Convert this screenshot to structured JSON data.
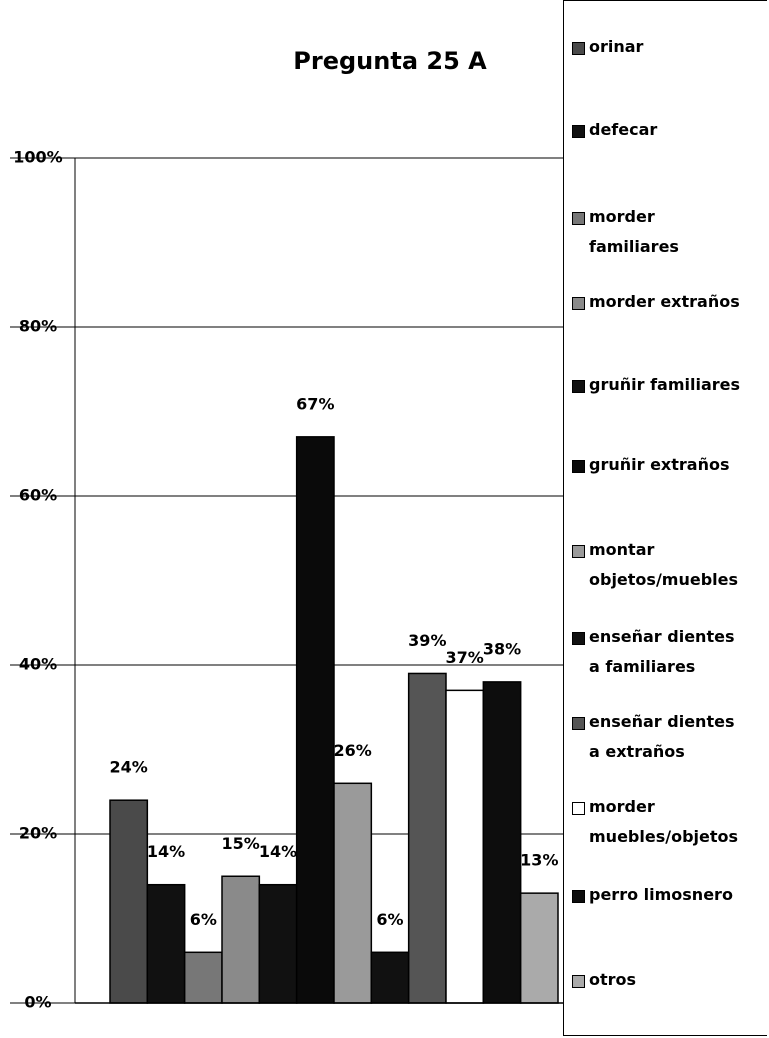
{
  "chart_data": {
    "type": "bar",
    "title": "Pregunta 25 A",
    "categories": [
      null
    ],
    "ylim": [
      0,
      100
    ],
    "yticks": [
      {
        "value": 0,
        "label": "0%"
      },
      {
        "value": 20,
        "label": "20%"
      },
      {
        "value": 40,
        "label": "40%"
      },
      {
        "value": 60,
        "label": "60%"
      },
      {
        "value": 80,
        "label": "80%"
      },
      {
        "value": 100,
        "label": "100%"
      }
    ],
    "grid": true,
    "legend": "right",
    "series": [
      {
        "name": "orinar",
        "color": "#4a4a4a",
        "values": [
          24
        ],
        "value_labels": [
          "24%"
        ]
      },
      {
        "name": "defecar",
        "color": "#111111",
        "values": [
          14
        ],
        "value_labels": [
          "14%"
        ]
      },
      {
        "name": "morder\nfamiliares",
        "color": "#777777",
        "values": [
          6
        ],
        "value_labels": [
          "6%"
        ]
      },
      {
        "name": "morder extraños",
        "color": "#8a8a8a",
        "values": [
          15
        ],
        "value_labels": [
          "15%"
        ]
      },
      {
        "name": "gruñir familiares",
        "color": "#111111",
        "values": [
          14
        ],
        "value_labels": [
          "14%"
        ]
      },
      {
        "name": "gruñir extraños",
        "color": "#0a0a0a",
        "values": [
          67
        ],
        "value_labels": [
          "67%"
        ]
      },
      {
        "name": "montar\nobjetos/muebles",
        "color": "#9a9a9a",
        "values": [
          26
        ],
        "value_labels": [
          "26%"
        ]
      },
      {
        "name": "enseñar dientes\na familiares",
        "color": "#111111",
        "values": [
          6
        ],
        "value_labels": [
          "6%"
        ]
      },
      {
        "name": "enseñar dientes\na extraños",
        "color": "#555555",
        "values": [
          39
        ],
        "value_labels": [
          "39%"
        ]
      },
      {
        "name": "morder\nmuebles/objetos",
        "color": "#ffffff",
        "values": [
          37
        ],
        "value_labels": [
          "37%"
        ]
      },
      {
        "name": "perro limosnero",
        "color": "#0d0d0d",
        "values": [
          38
        ],
        "value_labels": [
          "38%"
        ]
      },
      {
        "name": "otros",
        "color": "#aaaaaa",
        "values": [
          13
        ],
        "value_labels": [
          "13%"
        ]
      }
    ]
  }
}
